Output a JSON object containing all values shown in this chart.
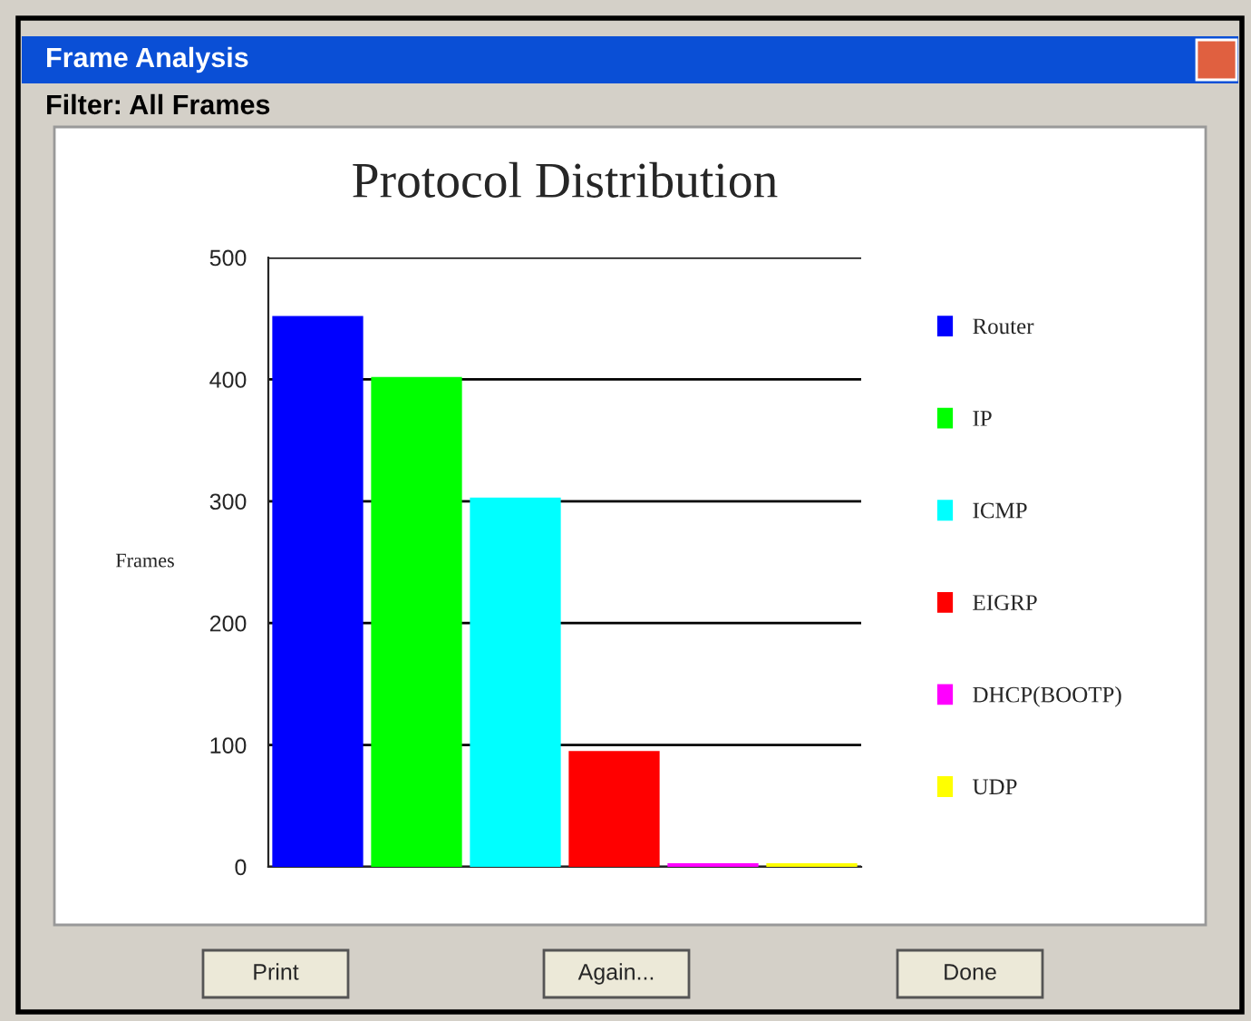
{
  "chart_data": {
    "type": "bar",
    "title": "Protocol Distribution",
    "ylabel": "Frames",
    "categories": [
      null,
      null,
      null,
      null,
      null,
      null
    ],
    "series": [
      {
        "name": "Router",
        "color": "#0000ff",
        "values": [
          452,
          null,
          null,
          null,
          null,
          null
        ]
      },
      {
        "name": "IP",
        "color": "#00ff00",
        "values": [
          null,
          402,
          null,
          null,
          null,
          null
        ]
      },
      {
        "name": "ICMP",
        "color": "#00ffff",
        "values": [
          null,
          null,
          303,
          null,
          null,
          null
        ]
      },
      {
        "name": "EIGRP",
        "color": "#ff0000",
        "values": [
          null,
          null,
          null,
          95,
          null,
          null
        ]
      },
      {
        "name": "DHCP(BOOTP)",
        "color": "#ff00ff",
        "values": [
          null,
          null,
          null,
          null,
          3,
          null
        ]
      },
      {
        "name": "UDP",
        "color": "#ffff00",
        "values": [
          null,
          null,
          null,
          null,
          null,
          3
        ]
      }
    ],
    "ylim": [
      0,
      500
    ],
    "yticks": [
      0,
      100,
      200,
      300,
      400,
      500
    ],
    "grid": "y",
    "legend": "right",
    "annotations": [
      "Frame Analysis",
      "Filter: All Frames",
      "Print",
      "Again...",
      "Done"
    ]
  }
}
